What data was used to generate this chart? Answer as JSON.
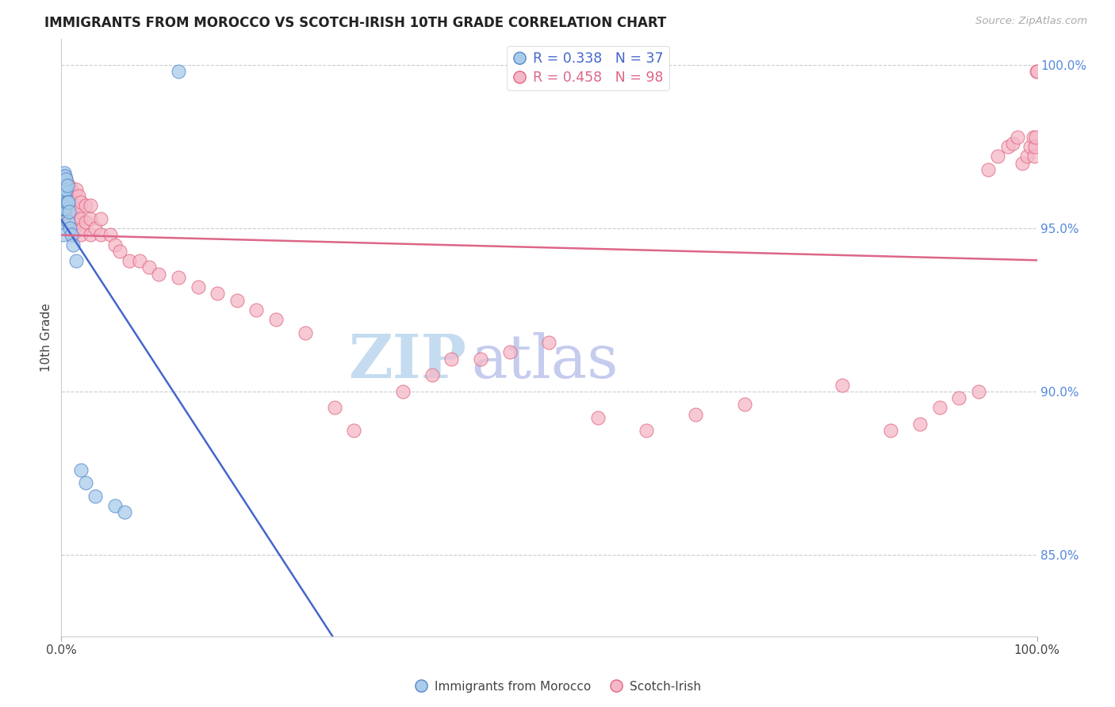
{
  "title": "IMMIGRANTS FROM MOROCCO VS SCOTCH-IRISH 10TH GRADE CORRELATION CHART",
  "source_text": "Source: ZipAtlas.com",
  "ylabel": "10th Grade",
  "right_ytick_labels": [
    "100.0%",
    "95.0%",
    "90.0%",
    "85.0%"
  ],
  "right_ytick_values": [
    1.0,
    0.95,
    0.9,
    0.85
  ],
  "ymin": 0.825,
  "ymax": 1.008,
  "legend_blue_r": 0.338,
  "legend_blue_n": 37,
  "legend_pink_r": 0.458,
  "legend_pink_n": 98,
  "blue_color": "#A8CCEA",
  "pink_color": "#F5B8C8",
  "blue_edge_color": "#5588CC",
  "pink_edge_color": "#E06880",
  "blue_line_color": "#4466CC",
  "pink_line_color": "#DD6688",
  "watermark_zip_color": "#C5DCF0",
  "watermark_atlas_color": "#C5CCEE",
  "blue_x": [
    0.001,
    0.001,
    0.001,
    0.001,
    0.002,
    0.002,
    0.002,
    0.002,
    0.002,
    0.002,
    0.002,
    0.003,
    0.003,
    0.003,
    0.003,
    0.004,
    0.004,
    0.004,
    0.004,
    0.005,
    0.005,
    0.005,
    0.006,
    0.006,
    0.007,
    0.007,
    0.008,
    0.009,
    0.01,
    0.012,
    0.015,
    0.02,
    0.025,
    0.035,
    0.055,
    0.065,
    0.12
  ],
  "blue_y": [
    0.956,
    0.958,
    0.962,
    0.964,
    0.948,
    0.952,
    0.956,
    0.96,
    0.962,
    0.964,
    0.966,
    0.956,
    0.96,
    0.964,
    0.967,
    0.956,
    0.96,
    0.963,
    0.966,
    0.958,
    0.962,
    0.965,
    0.958,
    0.963,
    0.952,
    0.958,
    0.955,
    0.95,
    0.948,
    0.945,
    0.94,
    0.876,
    0.872,
    0.868,
    0.865,
    0.863,
    0.998
  ],
  "pink_x": [
    0.001,
    0.001,
    0.002,
    0.002,
    0.002,
    0.002,
    0.003,
    0.003,
    0.003,
    0.003,
    0.004,
    0.004,
    0.004,
    0.005,
    0.005,
    0.005,
    0.005,
    0.006,
    0.006,
    0.006,
    0.007,
    0.007,
    0.007,
    0.008,
    0.008,
    0.008,
    0.009,
    0.009,
    0.01,
    0.01,
    0.01,
    0.01,
    0.012,
    0.012,
    0.013,
    0.015,
    0.015,
    0.015,
    0.016,
    0.018,
    0.02,
    0.02,
    0.02,
    0.022,
    0.025,
    0.025,
    0.03,
    0.03,
    0.03,
    0.035,
    0.04,
    0.04,
    0.05,
    0.055,
    0.06,
    0.07,
    0.08,
    0.09,
    0.1,
    0.12,
    0.14,
    0.16,
    0.18,
    0.2,
    0.22,
    0.25,
    0.28,
    0.3,
    0.35,
    0.38,
    0.4,
    0.43,
    0.46,
    0.5,
    0.55,
    0.6,
    0.65,
    0.7,
    0.8,
    0.85,
    0.88,
    0.9,
    0.92,
    0.94,
    0.95,
    0.96,
    0.97,
    0.975,
    0.98,
    0.985,
    0.99,
    0.993,
    0.996,
    0.997,
    0.998,
    0.999,
    0.9995,
    1.0
  ],
  "pink_y": [
    0.955,
    0.96,
    0.953,
    0.958,
    0.962,
    0.965,
    0.955,
    0.96,
    0.963,
    0.966,
    0.957,
    0.96,
    0.963,
    0.955,
    0.958,
    0.962,
    0.965,
    0.955,
    0.96,
    0.963,
    0.952,
    0.957,
    0.962,
    0.955,
    0.96,
    0.963,
    0.955,
    0.96,
    0.948,
    0.953,
    0.957,
    0.962,
    0.948,
    0.955,
    0.95,
    0.952,
    0.957,
    0.962,
    0.955,
    0.96,
    0.948,
    0.953,
    0.958,
    0.95,
    0.952,
    0.957,
    0.948,
    0.953,
    0.957,
    0.95,
    0.948,
    0.953,
    0.948,
    0.945,
    0.943,
    0.94,
    0.94,
    0.938,
    0.936,
    0.935,
    0.932,
    0.93,
    0.928,
    0.925,
    0.922,
    0.918,
    0.895,
    0.888,
    0.9,
    0.905,
    0.91,
    0.91,
    0.912,
    0.915,
    0.892,
    0.888,
    0.893,
    0.896,
    0.902,
    0.888,
    0.89,
    0.895,
    0.898,
    0.9,
    0.968,
    0.972,
    0.975,
    0.976,
    0.978,
    0.97,
    0.972,
    0.975,
    0.978,
    0.972,
    0.975,
    0.978,
    0.998,
    0.998
  ]
}
